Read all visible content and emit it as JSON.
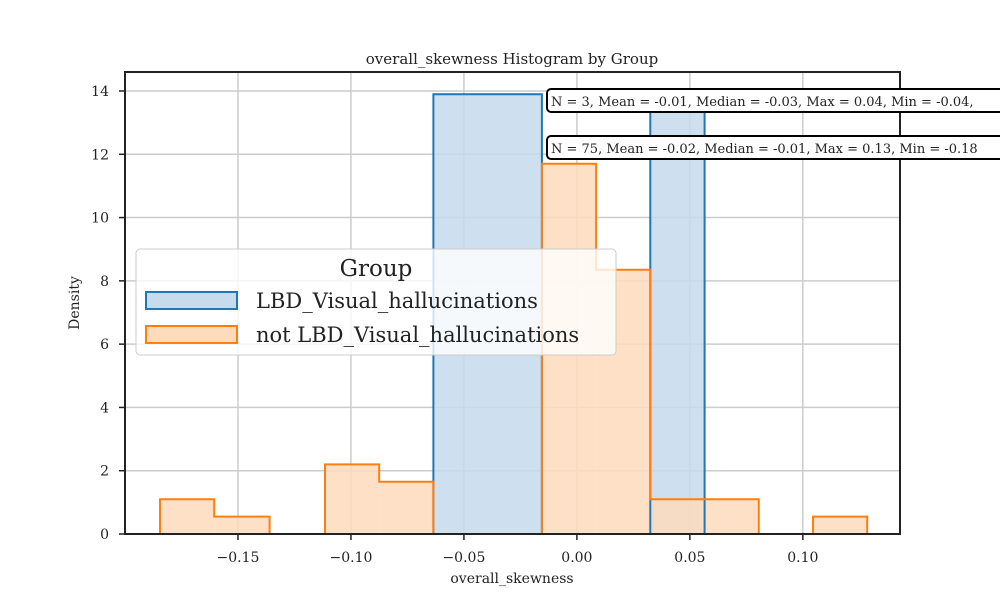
{
  "chart_data": {
    "type": "histogram",
    "title": "overall_skewness Histogram by Group",
    "xlabel": "overall_skewness",
    "ylabel": "Density",
    "xlim": [
      -0.2,
      0.143
    ],
    "ylim": [
      0,
      14.6
    ],
    "x_ticks": [
      -0.15,
      -0.1,
      -0.05,
      0.0,
      0.05,
      0.1
    ],
    "x_tick_labels": [
      "−0.15",
      "−0.10",
      "−0.05",
      "0.00",
      "0.05",
      "0.10"
    ],
    "y_ticks": [
      0,
      2,
      4,
      6,
      8,
      10,
      12,
      14
    ],
    "y_tick_labels": [
      "0",
      "2",
      "4",
      "6",
      "8",
      "10",
      "12",
      "14"
    ],
    "grid": true,
    "legend": {
      "title": "Group",
      "placement": "center-left"
    },
    "series": [
      {
        "name": "LBD_Visual_hallucinations",
        "color": "#1f77b4",
        "fill": "#c6dbec",
        "bins": [
          {
            "x0": -0.0635,
            "x1": -0.0155,
            "density": 13.9
          },
          {
            "x0": -0.0155,
            "x1": 0.0325,
            "density": 0
          },
          {
            "x0": 0.0325,
            "x1": 0.0565,
            "density": 13.9
          }
        ]
      },
      {
        "name": "not LBD_Visual_hallucinations",
        "color": "#ff7f0e",
        "fill": "#fedbbd",
        "bins": [
          {
            "x0": -0.1845,
            "x1": -0.1605,
            "density": 1.1
          },
          {
            "x0": -0.1605,
            "x1": -0.136,
            "density": 0.55
          },
          {
            "x0": -0.136,
            "x1": -0.1115,
            "density": 0
          },
          {
            "x0": -0.1115,
            "x1": -0.0875,
            "density": 2.2
          },
          {
            "x0": -0.0875,
            "x1": -0.0635,
            "density": 1.65
          },
          {
            "x0": -0.0635,
            "x1": -0.0155,
            "density": 0
          },
          {
            "x0": -0.0155,
            "x1": 0.0085,
            "density": 11.7
          },
          {
            "x0": 0.0085,
            "x1": 0.0325,
            "density": 8.35
          },
          {
            "x0": 0.0325,
            "x1": 0.0805,
            "density": 1.1
          },
          {
            "x0": 0.0805,
            "x1": 0.1045,
            "density": 0
          },
          {
            "x0": 0.1045,
            "x1": 0.1285,
            "density": 0.55
          }
        ]
      }
    ],
    "annotations": [
      "N = 3, Mean = -0.01, Median = -0.03, Max = 0.04, Min = -0.04,",
      "N = 75, Mean = -0.02, Median = -0.01, Max = 0.13, Min = -0.18"
    ]
  }
}
